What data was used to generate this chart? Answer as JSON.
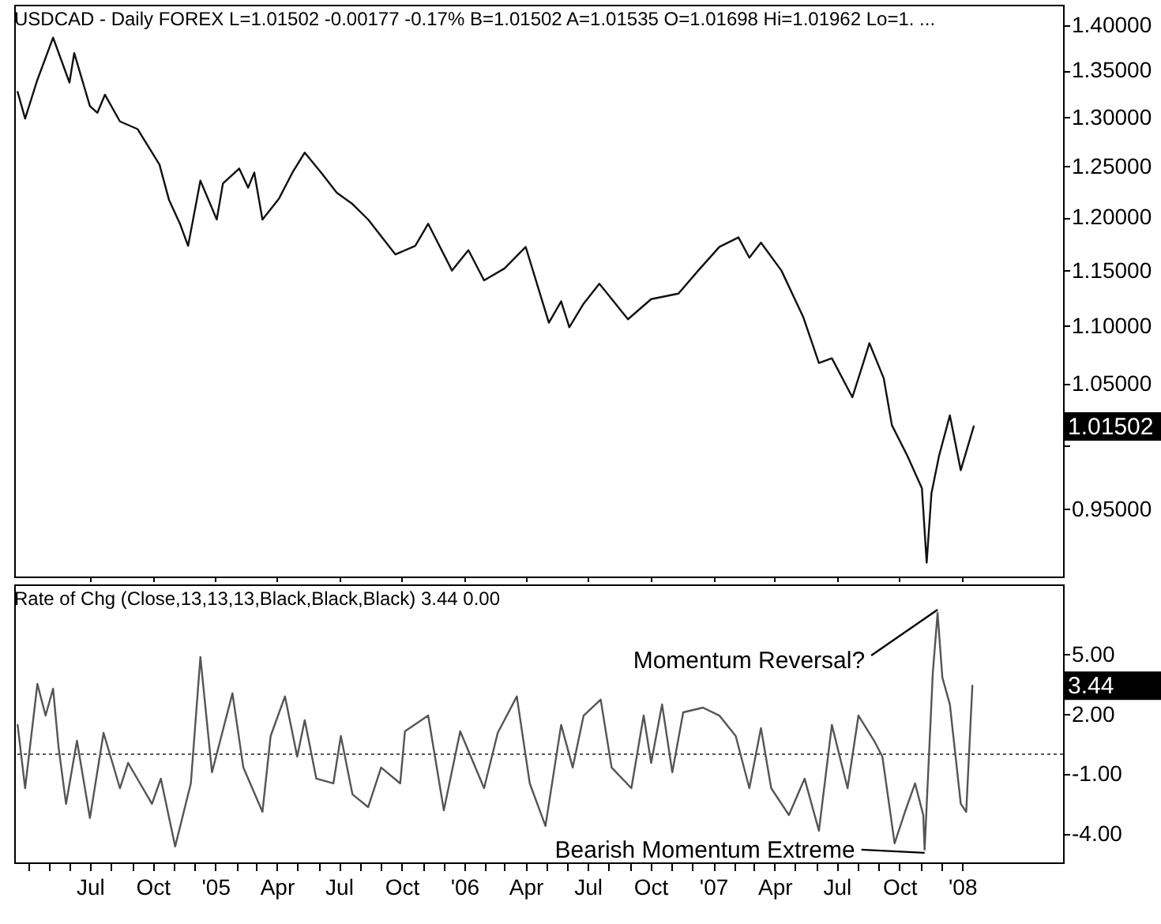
{
  "chart_data": [
    {
      "type": "line",
      "title": "USDCAD - Daily  FOREX  L=1.01502 -0.00177 -0.17% B=1.01502 A=1.01535 O=1.01698 Hi=1.01962 Lo=1. ...",
      "log": "y",
      "tick_labels": "y",
      "x": [
        "2004-03-17",
        "2004-03-28",
        "2004-04-15",
        "2004-05-08",
        "2004-06-01",
        "2004-06-08",
        "2004-07-01",
        "2004-07-12",
        "2004-07-23",
        "2004-08-14",
        "2004-09-09",
        "2004-10-11",
        "2004-10-25",
        "2004-11-10",
        "2004-11-22",
        "2004-12-10",
        "2005-01-03",
        "2005-01-12",
        "2005-02-05",
        "2005-02-18",
        "2005-02-27",
        "2005-03-11",
        "2005-04-04",
        "2005-04-24",
        "2005-05-12",
        "2005-06-05",
        "2005-06-28",
        "2005-07-21",
        "2005-08-13",
        "2005-09-22",
        "2005-10-21",
        "2005-11-09",
        "2005-12-14",
        "2006-01-07",
        "2006-01-30",
        "2006-03-01",
        "2006-04-01",
        "2006-05-05",
        "2006-05-23",
        "2006-06-04",
        "2006-06-25",
        "2006-07-18",
        "2006-08-29",
        "2006-10-02",
        "2006-11-11",
        "2006-12-10",
        "2007-01-10",
        "2007-02-07",
        "2007-02-23",
        "2007-03-12",
        "2007-04-11",
        "2007-05-13",
        "2007-06-05",
        "2007-06-24",
        "2007-07-24",
        "2007-08-09",
        "2007-08-18",
        "2007-09-08",
        "2007-09-20",
        "2007-10-13",
        "2007-11-03",
        "2007-11-10",
        "2007-11-17",
        "2007-11-28",
        "2007-12-14",
        "2007-12-30",
        "2008-01-18"
      ],
      "series": [
        {
          "color": "#111111",
          "values": [
            1.327,
            1.299,
            1.34,
            1.386,
            1.337,
            1.369,
            1.312,
            1.305,
            1.324,
            1.296,
            1.288,
            1.252,
            1.217,
            1.194,
            1.173,
            1.236,
            1.198,
            1.233,
            1.248,
            1.229,
            1.244,
            1.198,
            1.218,
            1.244,
            1.264,
            1.244,
            1.224,
            1.213,
            1.198,
            1.165,
            1.173,
            1.194,
            1.15,
            1.169,
            1.141,
            1.152,
            1.172,
            1.103,
            1.122,
            1.099,
            1.12,
            1.138,
            1.106,
            1.124,
            1.129,
            1.15,
            1.172,
            1.181,
            1.162,
            1.176,
            1.15,
            1.108,
            1.068,
            1.072,
            1.039,
            1.068,
            1.085,
            1.055,
            1.016,
            0.991,
            0.966,
            0.91,
            0.962,
            0.991,
            1.024,
            0.98,
            1.01502
          ]
        }
      ],
      "xlim": [
        "2004-03-12",
        "2008-05-28"
      ],
      "ylim": [
        0.9,
        1.423
      ],
      "xticks": [
        {
          "value": "2004-07-01",
          "label": null
        },
        {
          "value": "2004-10-01",
          "label": null
        },
        {
          "value": "2005-01-01",
          "label": null
        },
        {
          "value": "2005-04-01",
          "label": null
        },
        {
          "value": "2005-07-01",
          "label": null
        },
        {
          "value": "2005-10-01",
          "label": null
        },
        {
          "value": "2006-01-01",
          "label": null
        },
        {
          "value": "2006-04-01",
          "label": null
        },
        {
          "value": "2006-07-01",
          "label": null
        },
        {
          "value": "2006-10-01",
          "label": null
        },
        {
          "value": "2007-01-01",
          "label": null
        },
        {
          "value": "2007-04-01",
          "label": null
        },
        {
          "value": "2007-07-01",
          "label": null
        },
        {
          "value": "2007-10-01",
          "label": null
        },
        {
          "value": "2008-01-01",
          "label": null
        }
      ],
      "yticks": [
        {
          "value": 1.4,
          "label": "1.40000"
        },
        {
          "value": 1.35,
          "label": "1.35000"
        },
        {
          "value": 1.3,
          "label": "1.30000"
        },
        {
          "value": 1.25,
          "label": "1.25000"
        },
        {
          "value": 1.2,
          "label": "1.20000"
        },
        {
          "value": 1.15,
          "label": "1.15000"
        },
        {
          "value": 1.1,
          "label": "1.10000"
        },
        {
          "value": 1.05,
          "label": "1.05000"
        },
        {
          "value": 1.0,
          "label": null
        },
        {
          "value": 0.95,
          "label": "0.95000"
        }
      ],
      "annotations": [
        "1.01502"
      ]
    },
    {
      "type": "line",
      "title": "Rate of Chg (Close,13,13,13,Black,Black,Black)   3.44  0.00",
      "x": [
        "2004-03-17",
        "2004-03-28",
        "2004-04-15",
        "2004-04-27",
        "2004-05-08",
        "2004-05-16",
        "2004-05-27",
        "2004-06-12",
        "2004-07-01",
        "2004-07-21",
        "2004-08-14",
        "2004-08-26",
        "2004-09-30",
        "2004-10-13",
        "2004-11-03",
        "2004-11-26",
        "2004-12-10",
        "2004-12-27",
        "2005-01-08",
        "2005-01-26",
        "2005-02-11",
        "2005-03-11",
        "2005-03-23",
        "2005-04-13",
        "2005-05-01",
        "2005-05-12",
        "2005-05-29",
        "2005-06-23",
        "2005-07-04",
        "2005-07-21",
        "2005-08-13",
        "2005-09-01",
        "2005-09-29",
        "2005-10-06",
        "2005-11-09",
        "2005-12-02",
        "2005-12-26",
        "2006-01-30",
        "2006-02-19",
        "2006-03-19",
        "2006-04-07",
        "2006-04-30",
        "2006-05-23",
        "2006-06-09",
        "2006-06-25",
        "2006-07-20",
        "2006-08-05",
        "2006-09-03",
        "2006-09-21",
        "2006-10-02",
        "2006-10-18",
        "2006-11-02",
        "2006-11-18",
        "2006-12-17",
        "2007-01-10",
        "2007-02-03",
        "2007-02-23",
        "2007-03-12",
        "2007-03-27",
        "2007-04-22",
        "2007-05-15",
        "2007-06-05",
        "2007-06-24",
        "2007-07-17",
        "2007-08-02",
        "2007-08-25",
        "2007-09-06",
        "2007-09-24",
        "2007-10-10",
        "2007-10-24",
        "2007-11-05",
        "2007-11-07",
        "2007-11-19",
        "2007-11-26",
        "2007-12-03",
        "2007-12-14",
        "2007-12-30",
        "2008-01-07",
        "2008-01-16"
      ],
      "series": [
        {
          "color": "#555555",
          "values": [
            1.47,
            -1.71,
            3.53,
            1.94,
            3.29,
            0.36,
            -2.5,
            0.67,
            -3.21,
            1.07,
            -1.71,
            -0.44,
            -2.5,
            -1.23,
            -4.64,
            -1.47,
            4.88,
            -0.91,
            0.67,
            3.06,
            -0.67,
            -2.9,
            0.91,
            2.9,
            -0.12,
            1.71,
            -1.23,
            -1.47,
            0.91,
            -2.02,
            -2.66,
            -0.67,
            -1.47,
            1.15,
            1.94,
            -2.82,
            1.15,
            -1.71,
            1.07,
            2.9,
            -1.47,
            -3.61,
            1.47,
            -0.67,
            1.94,
            2.74,
            -0.67,
            -1.71,
            1.94,
            -0.44,
            2.5,
            -0.91,
            2.1,
            2.34,
            1.94,
            0.91,
            -1.71,
            1.31,
            -1.71,
            -3.06,
            -1.23,
            -3.85,
            1.47,
            -1.71,
            1.94,
            0.67,
            -0.12,
            -4.48,
            -2.82,
            -1.47,
            -3.06,
            -4.8,
            4.09,
            7.1,
            3.85,
            2.5,
            -2.5,
            -2.9,
            3.44
          ]
        }
      ],
      "xlim": [
        "2004-03-12",
        "2008-05-28"
      ],
      "ylim": [
        -5.44,
        8.53
      ],
      "yticks": [
        {
          "value": 5,
          "label": "5.00"
        },
        {
          "value": 2,
          "label": "2.00"
        },
        {
          "value": -1,
          "label": "-1.00"
        },
        {
          "value": -4,
          "label": "-4.00"
        }
      ],
      "xticks": [
        {
          "value": "2004-04-01",
          "label": null
        },
        {
          "value": "2004-05-01",
          "label": null
        },
        {
          "value": "2004-06-01",
          "label": null
        },
        {
          "value": "2004-07-01",
          "label": "Jul"
        },
        {
          "value": "2004-08-01",
          "label": null
        },
        {
          "value": "2004-09-01",
          "label": null
        },
        {
          "value": "2004-10-01",
          "label": "Oct"
        },
        {
          "value": "2004-11-01",
          "label": null
        },
        {
          "value": "2004-12-01",
          "label": null
        },
        {
          "value": "2005-01-01",
          "label": "'05"
        },
        {
          "value": "2005-02-01",
          "label": null
        },
        {
          "value": "2005-03-01",
          "label": null
        },
        {
          "value": "2005-04-01",
          "label": "Apr"
        },
        {
          "value": "2005-05-01",
          "label": null
        },
        {
          "value": "2005-06-01",
          "label": null
        },
        {
          "value": "2005-07-01",
          "label": "Jul"
        },
        {
          "value": "2005-08-01",
          "label": null
        },
        {
          "value": "2005-09-01",
          "label": null
        },
        {
          "value": "2005-10-01",
          "label": "Oct"
        },
        {
          "value": "2005-11-01",
          "label": null
        },
        {
          "value": "2005-12-01",
          "label": null
        },
        {
          "value": "2006-01-01",
          "label": "'06"
        },
        {
          "value": "2006-02-01",
          "label": null
        },
        {
          "value": "2006-03-01",
          "label": null
        },
        {
          "value": "2006-04-01",
          "label": "Apr"
        },
        {
          "value": "2006-05-01",
          "label": null
        },
        {
          "value": "2006-06-01",
          "label": null
        },
        {
          "value": "2006-07-01",
          "label": "Jul"
        },
        {
          "value": "2006-08-01",
          "label": null
        },
        {
          "value": "2006-09-01",
          "label": null
        },
        {
          "value": "2006-10-01",
          "label": "Oct"
        },
        {
          "value": "2006-11-01",
          "label": null
        },
        {
          "value": "2006-12-01",
          "label": null
        },
        {
          "value": "2007-01-01",
          "label": "'07"
        },
        {
          "value": "2007-02-01",
          "label": null
        },
        {
          "value": "2007-03-01",
          "label": null
        },
        {
          "value": "2007-04-01",
          "label": "Apr"
        },
        {
          "value": "2007-05-01",
          "label": null
        },
        {
          "value": "2007-06-01",
          "label": null
        },
        {
          "value": "2007-07-01",
          "label": "Jul"
        },
        {
          "value": "2007-08-01",
          "label": null
        },
        {
          "value": "2007-09-01",
          "label": null
        },
        {
          "value": "2007-10-01",
          "label": "Oct"
        },
        {
          "value": "2007-11-01",
          "label": null
        },
        {
          "value": "2007-12-01",
          "label": null
        },
        {
          "value": "2008-01-01",
          "label": "'08"
        }
      ],
      "ref_lines": [
        {
          "axis": "y",
          "value": 0,
          "line_style": "dotted",
          "color": "#555555"
        }
      ],
      "annotations": [
        {
          "text": "Momentum Reversal?",
          "x": "2007-11-26",
          "y": 7.1
        },
        {
          "text": "Bearish Momentum Extreme",
          "x": "2007-11-07",
          "y": -4.8
        },
        "3.44"
      ]
    }
  ]
}
